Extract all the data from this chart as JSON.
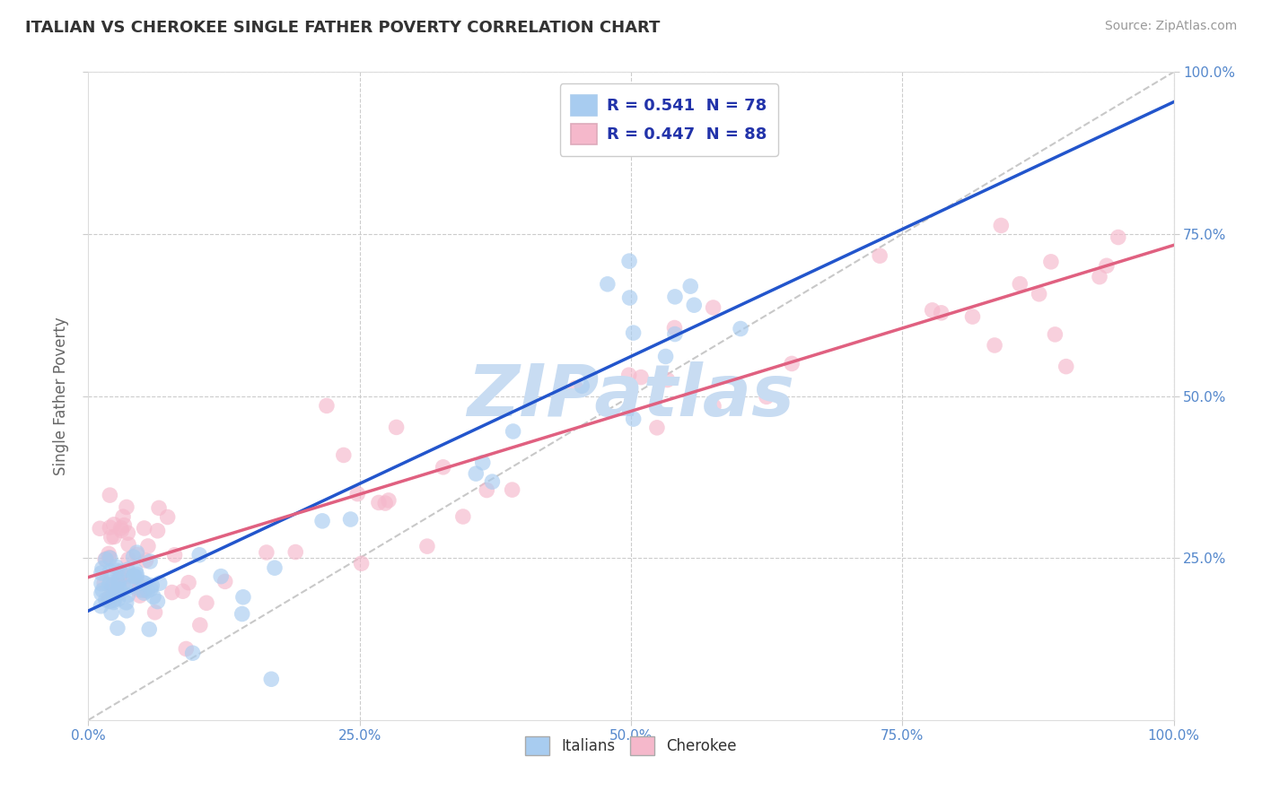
{
  "title": "ITALIAN VS CHEROKEE SINGLE FATHER POVERTY CORRELATION CHART",
  "source": "Source: ZipAtlas.com",
  "ylabel": "Single Father Poverty",
  "xlim": [
    0.0,
    1.0
  ],
  "ylim": [
    0.0,
    1.0
  ],
  "italian_R": 0.541,
  "italian_N": 78,
  "cherokee_R": 0.447,
  "cherokee_N": 88,
  "italian_color": "#A8CCF0",
  "cherokee_color": "#F5B8CB",
  "italian_line_color": "#2255CC",
  "cherokee_line_color": "#E06080",
  "diagonal_color": "#BBBBBB",
  "background_color": "#FFFFFF",
  "grid_color": "#CCCCCC",
  "title_color": "#333333",
  "tick_color": "#5588CC",
  "legend_text_color": "#2233AA",
  "watermark_color": "#C8DCF2",
  "title_fontsize": 13,
  "source_fontsize": 10,
  "tick_fontsize": 11
}
